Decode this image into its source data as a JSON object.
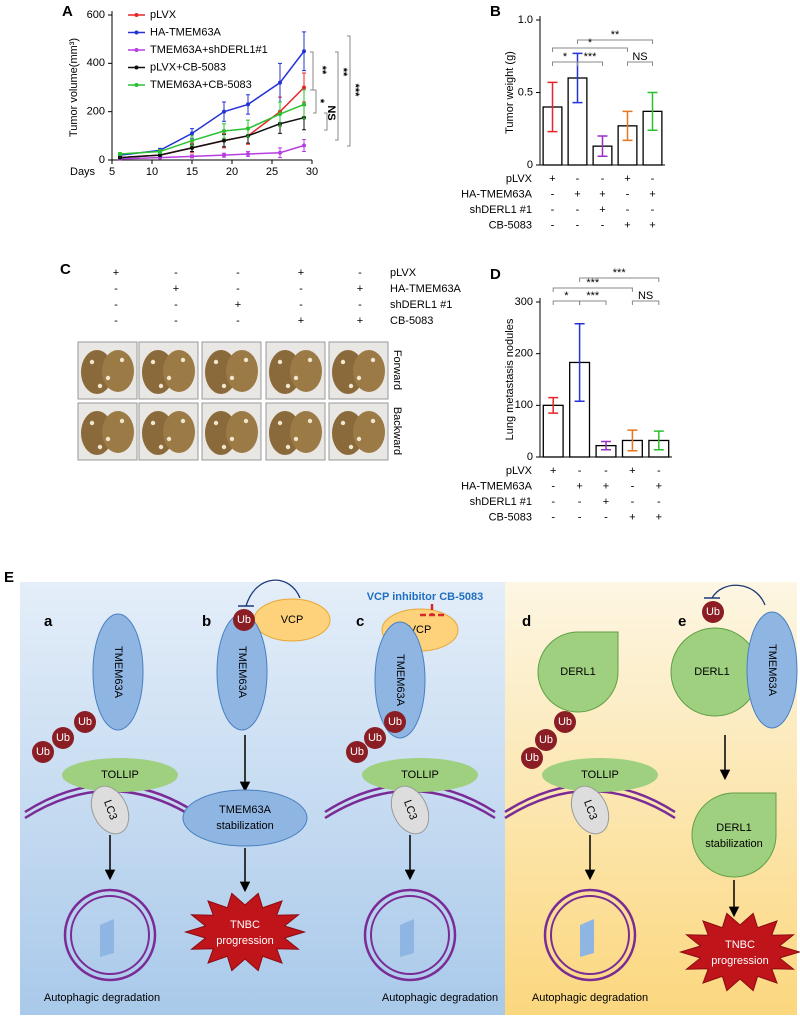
{
  "chart_data": [
    {
      "type": "line",
      "panel": "A",
      "xlabel": "Days",
      "ylabel": "Tumor volume(mm³)",
      "x": [
        6,
        11,
        15,
        19,
        22,
        26,
        29
      ],
      "xlim": [
        5,
        30
      ],
      "xticks": [
        5,
        10,
        15,
        20,
        25,
        30
      ],
      "ylim": [
        0,
        600
      ],
      "yticks": [
        0,
        200,
        400,
        600
      ],
      "legend": "upper left",
      "series": [
        {
          "name": "pLVX",
          "color": "#e8262a",
          "values": [
            10,
            20,
            50,
            80,
            100,
            200,
            300
          ],
          "errors": [
            4,
            6,
            20,
            30,
            35,
            60,
            60
          ]
        },
        {
          "name": "HA-TMEM63A",
          "color": "#2433d6",
          "values": [
            20,
            40,
            110,
            200,
            230,
            320,
            450
          ],
          "errors": [
            5,
            8,
            20,
            40,
            40,
            80,
            80
          ]
        },
        {
          "name": "TMEM63A+shDERL1#1",
          "color": "#b73fe0",
          "values": [
            5,
            10,
            15,
            20,
            25,
            30,
            60
          ],
          "errors": [
            3,
            4,
            6,
            8,
            10,
            20,
            25
          ]
        },
        {
          "name": "pLVX+CB-5083",
          "color": "#111111",
          "values": [
            10,
            20,
            50,
            80,
            100,
            150,
            175
          ],
          "errors": [
            4,
            6,
            15,
            25,
            30,
            40,
            50
          ]
        },
        {
          "name": "TMEM63A+CB-5083",
          "color": "#29c22e",
          "values": [
            25,
            35,
            80,
            120,
            130,
            190,
            230
          ],
          "errors": [
            5,
            8,
            20,
            30,
            35,
            50,
            60
          ]
        }
      ],
      "annotations": [
        "**",
        "*",
        "NS",
        "**",
        "***"
      ]
    },
    {
      "type": "bar",
      "panel": "B",
      "ylabel": "Tumor weight (g)",
      "categories": [
        null,
        null,
        null,
        null,
        null
      ],
      "values": [
        0.4,
        0.6,
        0.13,
        0.27,
        0.37
      ],
      "errors": [
        0.17,
        0.17,
        0.07,
        0.1,
        0.13
      ],
      "colors": [
        "#e8262a",
        "#2433d6",
        "#9b2fc9",
        "#e8761e",
        "#29c22e"
      ],
      "ylim": [
        0,
        1
      ],
      "yticks": [
        0,
        0.5,
        {
          "value": 1,
          "label": "1.0"
        }
      ],
      "annotations": [
        "**",
        "*",
        "*",
        "***",
        "NS"
      ],
      "conditions": [
        {
          "label": "pLVX",
          "signs": [
            "+",
            "-",
            "-",
            "+",
            "-"
          ]
        },
        {
          "label": "HA-TMEM63A",
          "signs": [
            "-",
            "+",
            "+",
            "-",
            "+"
          ]
        },
        {
          "label": "shDERL1 #1",
          "signs": [
            "-",
            "-",
            "+",
            "-",
            "-"
          ]
        },
        {
          "label": "CB-5083",
          "signs": [
            "-",
            "-",
            "-",
            "+",
            "+"
          ]
        }
      ]
    },
    {
      "type": "bar",
      "panel": "D",
      "ylabel": "Lung metastasis nodules",
      "categories": [
        null,
        null,
        null,
        null,
        null
      ],
      "values": [
        100,
        183,
        22,
        32,
        32
      ],
      "errors": [
        15,
        75,
        8,
        20,
        18
      ],
      "colors": [
        "#e8262a",
        "#2433d6",
        "#9b2fc9",
        "#e8761e",
        "#29c22e"
      ],
      "ylim": [
        0,
        300
      ],
      "yticks": [
        0,
        100,
        200,
        300
      ],
      "annotations": [
        "***",
        "***",
        "*",
        "***",
        "NS"
      ],
      "conditions": [
        {
          "label": "pLVX",
          "signs": [
            "+",
            "-",
            "-",
            "+",
            "-"
          ]
        },
        {
          "label": "HA-TMEM63A",
          "signs": [
            "-",
            "+",
            "+",
            "-",
            "+"
          ]
        },
        {
          "label": "shDERL1 #1",
          "signs": [
            "-",
            "-",
            "+",
            "-",
            "-"
          ]
        },
        {
          "label": "CB-5083",
          "signs": [
            "-",
            "-",
            "-",
            "+",
            "+"
          ]
        }
      ]
    }
  ],
  "panel_c": {
    "label": "C",
    "conditions": [
      {
        "label": "pLVX",
        "signs": [
          "+",
          "-",
          "-",
          "+",
          "-"
        ]
      },
      {
        "label": "HA-TMEM63A",
        "signs": [
          "-",
          "+",
          "-",
          "-",
          "+"
        ]
      },
      {
        "label": "shDERL1 #1",
        "signs": [
          "-",
          "-",
          "+",
          "-",
          "-"
        ]
      },
      {
        "label": "CB-5083",
        "signs": [
          "-",
          "-",
          "-",
          "+",
          "+"
        ]
      }
    ],
    "views": [
      "Forward",
      "Backward"
    ]
  },
  "panel_e": {
    "label": "E",
    "inhibitor": "VCP inhibitor CB-5083",
    "a": {
      "letter": "a",
      "protein": "TMEM63A",
      "ub": [
        "Ub",
        "Ub",
        "Ub"
      ],
      "adaptor": "TOLLIP",
      "lc3": "LC3",
      "outcome": "Autophagic degradation"
    },
    "b": {
      "letter": "b",
      "protein": "TMEM63A",
      "ub": "Ub",
      "vcp": "VCP",
      "stabilization": [
        "TMEM63A",
        "stabilization"
      ],
      "outcome": [
        "TNBC",
        "progression"
      ]
    },
    "c": {
      "letter": "c",
      "protein": "TMEM63A",
      "ub": [
        "Ub",
        "Ub",
        "Ub"
      ],
      "vcp": "VCP",
      "adaptor": "TOLLIP",
      "lc3": "LC3",
      "outcome": "Autophagic degradation"
    },
    "d": {
      "letter": "d",
      "protein": "DERL1",
      "ub": [
        "Ub",
        "Ub",
        "Ub"
      ],
      "adaptor": "TOLLIP",
      "lc3": "LC3",
      "outcome": "Autophagic degradation"
    },
    "e": {
      "letter": "e",
      "protein": "DERL1",
      "partner": "TMEM63A",
      "ub": "Ub",
      "stabilization": [
        "DERL1",
        "stabilization"
      ],
      "outcome": [
        "TNBC",
        "progression"
      ]
    }
  }
}
